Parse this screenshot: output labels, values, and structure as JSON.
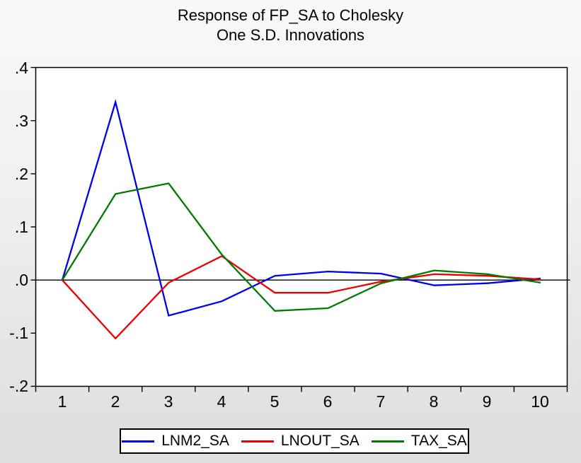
{
  "title": {
    "line1": "Response of FP_SA to Cholesky",
    "line2": "One S.D. Innovations"
  },
  "chart_data": {
    "type": "line",
    "title": "Response of FP_SA to Cholesky One S.D. Innovations",
    "x": [
      1,
      2,
      3,
      4,
      5,
      6,
      7,
      8,
      9,
      10
    ],
    "series": [
      {
        "name": "LNM2_SA",
        "color": "#0000ee",
        "values": [
          0.0,
          0.335,
          -0.067,
          -0.04,
          0.008,
          0.016,
          0.012,
          -0.01,
          -0.006,
          0.003
        ]
      },
      {
        "name": "LNOUT_SA",
        "color": "#ee0000",
        "values": [
          0.0,
          -0.11,
          -0.005,
          0.045,
          -0.024,
          -0.024,
          -0.003,
          0.011,
          0.008,
          0.001
        ]
      },
      {
        "name": "TAX_SA",
        "color": "#007a00",
        "values": [
          0.0,
          0.162,
          0.182,
          0.048,
          -0.058,
          -0.053,
          -0.006,
          0.018,
          0.011,
          -0.005
        ]
      }
    ],
    "xlabel": "",
    "ylabel": "",
    "ylim": [
      -0.2,
      0.4
    ],
    "yticks": [
      0.4,
      0.3,
      0.2,
      0.1,
      0.0,
      -0.1,
      -0.2
    ],
    "ytick_labels": [
      ".4",
      ".3",
      ".2",
      ".1",
      ".0",
      "-.1",
      "-.2"
    ],
    "xtick_labels": [
      "1",
      "2",
      "3",
      "4",
      "5",
      "6",
      "7",
      "8",
      "9",
      "10"
    ],
    "grid": false,
    "zero_line": true,
    "legend_position": "bottom",
    "plot_background": "#ffffff",
    "axis_color": "#000000"
  }
}
